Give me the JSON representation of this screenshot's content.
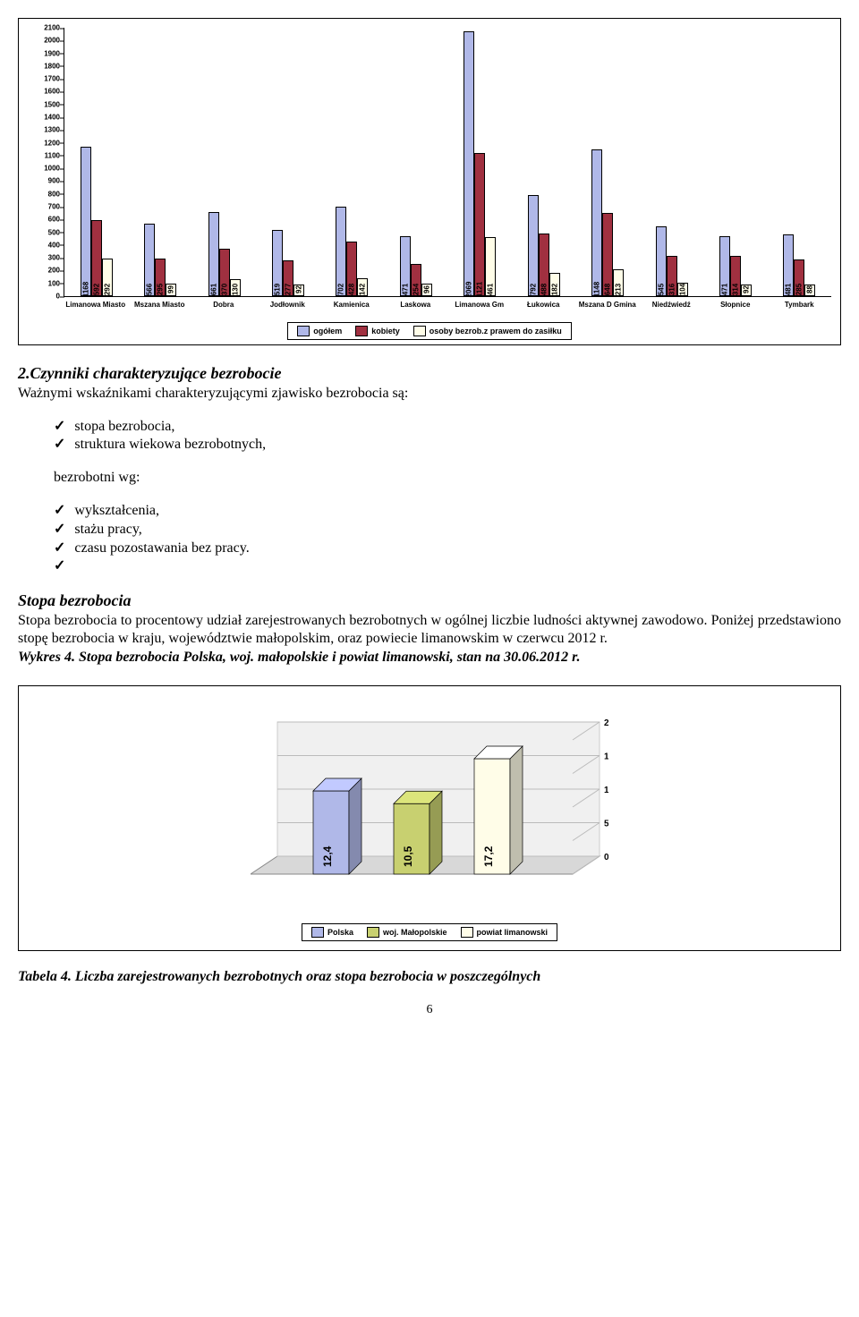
{
  "barChart": {
    "series_colors": {
      "ogolem": "#b0b8e8",
      "kobiety": "#a03040",
      "osoby": "#fffde8"
    },
    "ymax": 2100,
    "ytick_step": 100,
    "categories": [
      "Limanowa Miasto",
      "Mszana Miasto",
      "Dobra",
      "Jodłownik",
      "Kamienica",
      "Laskowa",
      "Limanowa Gm",
      "Łukowica",
      "Mszana D Gmina",
      "Niedźwiedź",
      "Słopnice",
      "Tymbark"
    ],
    "data": {
      "ogolem": [
        1168,
        566,
        661,
        519,
        702,
        471,
        2069,
        792,
        1148,
        545,
        471,
        481
      ],
      "kobiety": [
        592,
        295,
        370,
        277,
        428,
        254,
        1121,
        488,
        648,
        316,
        314,
        285
      ],
      "osoby": [
        292,
        99,
        130,
        92,
        142,
        96,
        461,
        182,
        213,
        104,
        92,
        88
      ]
    },
    "legend": [
      "ogółem",
      "kobiety",
      "osoby bezrob.z prawem do zasiłku"
    ]
  },
  "section2": {
    "title": "2.Czynniki charakteryzujące bezrobocie",
    "intro": "Ważnymi wskaźnikami charakteryzującymi zjawisko bezrobocia są:",
    "items1": [
      "stopa bezrobocia,",
      "struktura wiekowa bezrobotnych,"
    ],
    "mid": "bezrobotni wg:",
    "items2": [
      "wykształcenia,",
      "stażu pracy,",
      "czasu pozostawania bez pracy."
    ],
    "sub_title": "Stopa bezrobocia",
    "para": "Stopa bezrobocia to procentowy udział zarejestrowanych bezrobotnych w ogólnej liczbie ludności aktywnej zawodowo. Poniżej przedstawiono stopę bezrobocia w  kraju, województwie małopolskim, oraz powiecie limanowskim w czerwcu 2012 r.",
    "caption": "Wykres 4. Stopa bezrobocia Polska, woj. małopolskie i powiat limanowski, stan na 30.06.2012 r."
  },
  "chart3d": {
    "ymax": 20,
    "ytick_step": 5,
    "labels": [
      "Polska",
      "woj. Małopolskie",
      "powiat limanowski"
    ],
    "values": [
      12.4,
      10.5,
      17.2
    ],
    "value_labels": [
      "12,4",
      "10,5",
      "17,2"
    ],
    "colors": [
      "#b0b8e8",
      "#c8d070",
      "#fffde8"
    ]
  },
  "footer_caption": "Tabela 4. Liczba zarejestrowanych bezrobotnych oraz  stopa bezrobocia w poszczególnych",
  "page": "6"
}
